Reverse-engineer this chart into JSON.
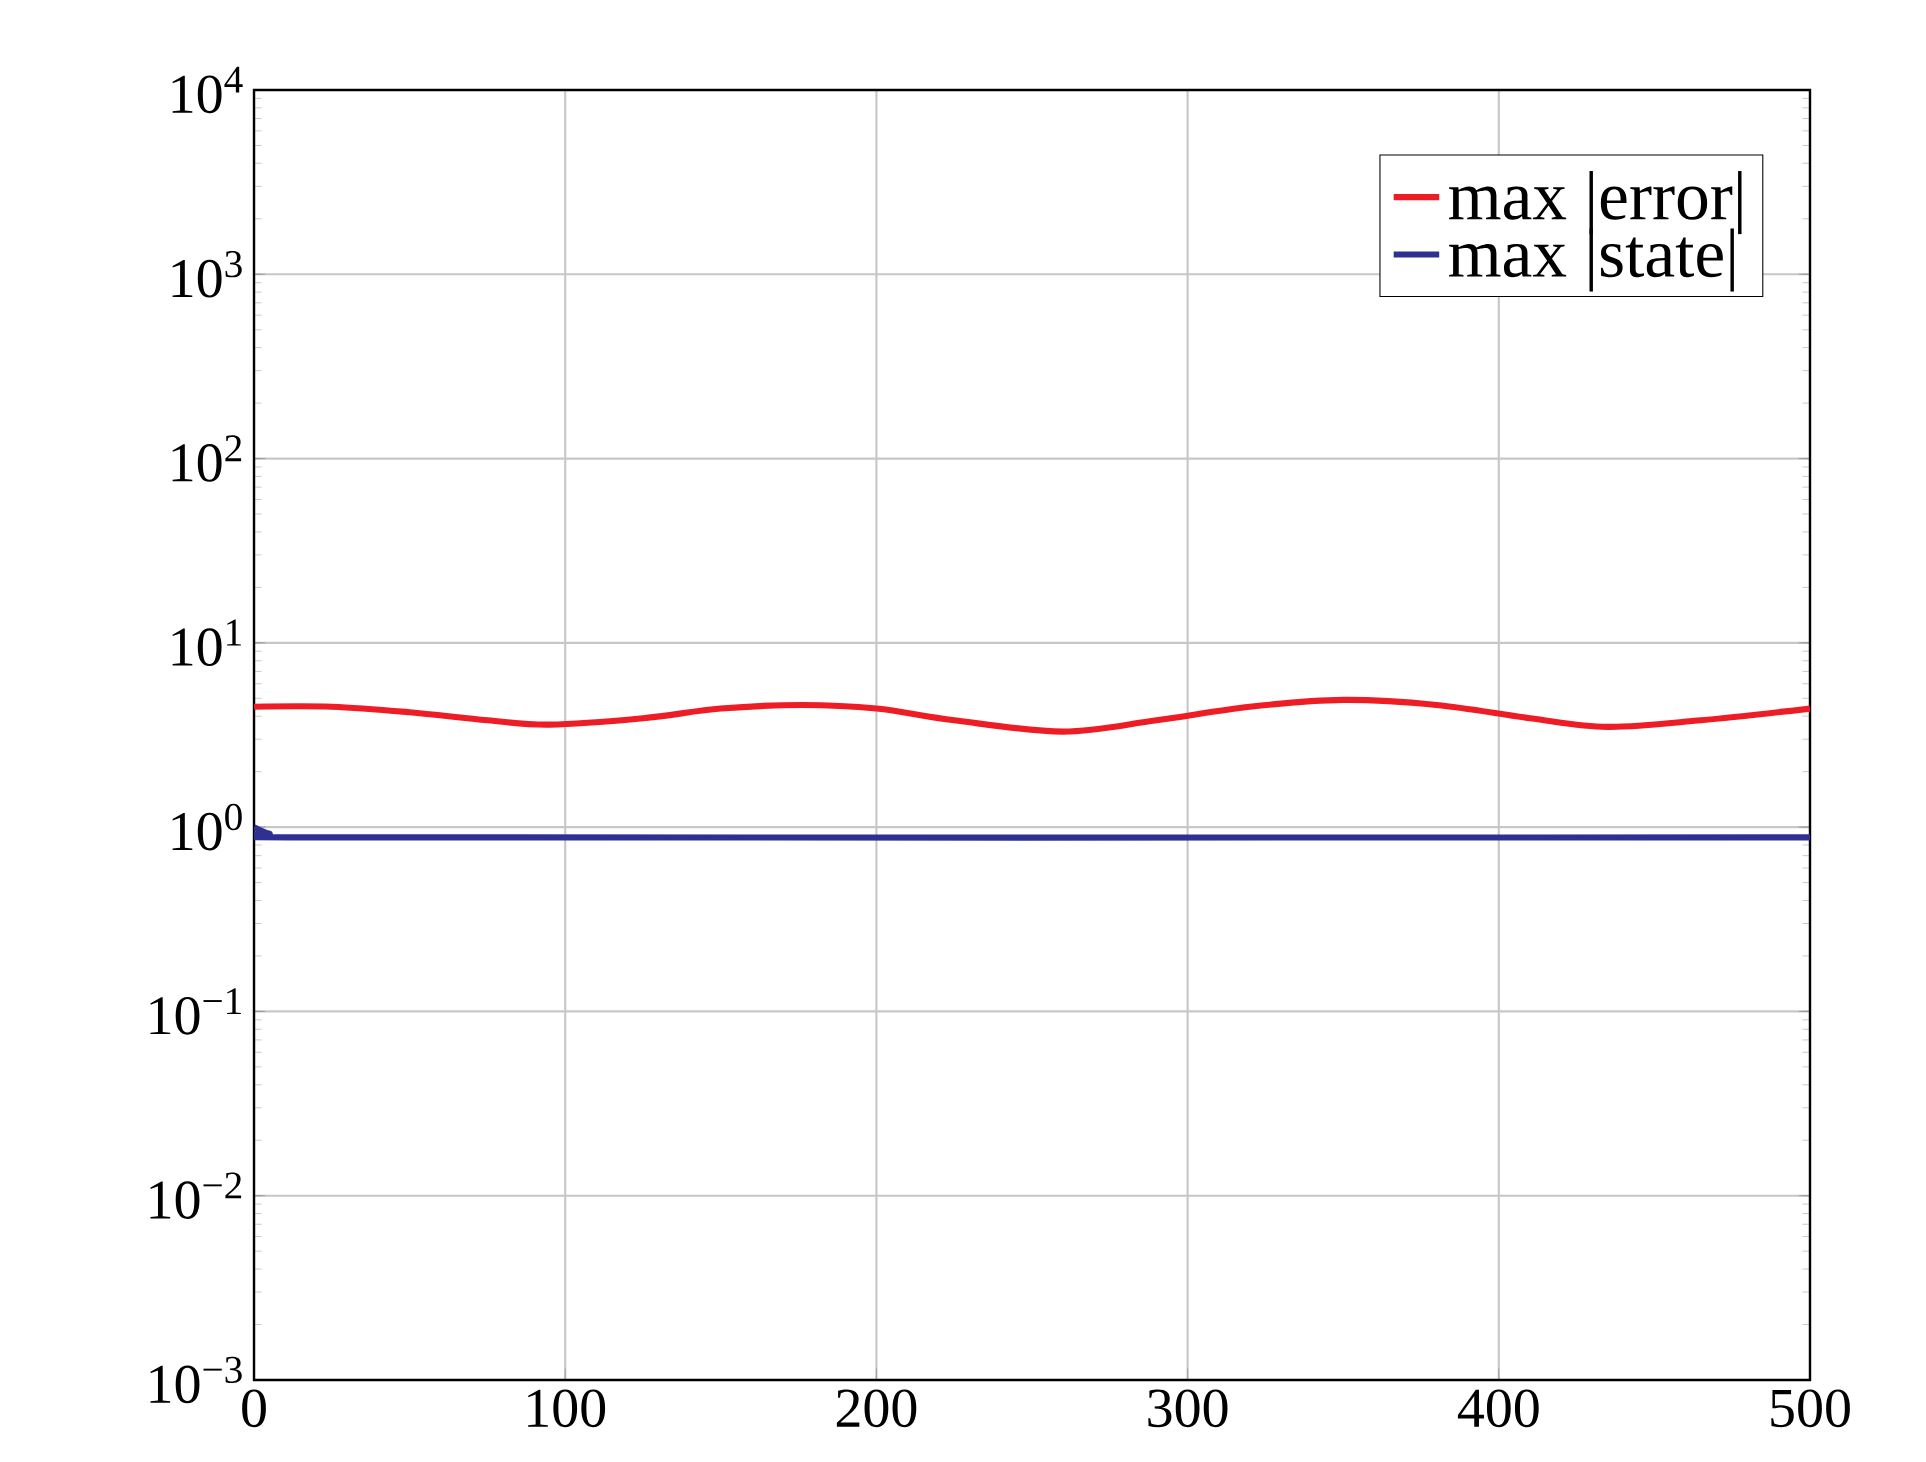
{
  "chart_data": {
    "type": "line",
    "log": "y",
    "grid": true,
    "legend": "top right",
    "marker": "none",
    "line_style": "solid",
    "xlim": [
      0,
      500
    ],
    "xticks": [
      0,
      100,
      200,
      300,
      400,
      500
    ],
    "ylim": [
      0.001,
      10000
    ],
    "yticks": [
      {
        "value": 0.001,
        "label": "10$^{−3}$"
      },
      {
        "value": 0.01,
        "label": "10$^{−2}$"
      },
      {
        "value": 0.1,
        "label": "10$^{−1}$"
      },
      {
        "value": 1,
        "label": "10$^{0}$"
      },
      {
        "value": 10,
        "label": "10$^{1}$"
      },
      {
        "value": 100,
        "label": "10$^{2}$"
      },
      {
        "value": 1000,
        "label": "10$^{3}$"
      },
      {
        "value": 10000,
        "label": "10$^{4}$"
      }
    ],
    "series": [
      {
        "name": "max |error|",
        "color": "#ee1c25",
        "x": [
          0,
          25,
          50,
          75,
          95,
          125,
          150,
          176,
          200,
          225,
          260,
          290,
          320,
          350,
          380,
          410,
          435,
          465,
          500
        ],
        "values": [
          4.5,
          4.5,
          4.2,
          3.8,
          3.6,
          3.9,
          4.4,
          4.6,
          4.4,
          3.8,
          3.3,
          3.8,
          4.5,
          4.9,
          4.6,
          3.9,
          3.5,
          3.8,
          4.4
        ]
      },
      {
        "name": "max |state|",
        "color": "#2e3192",
        "x": [
          0,
          5,
          12,
          500
        ],
        "values": [
          1.0,
          0.92,
          0.88,
          0.88
        ]
      }
    ]
  }
}
